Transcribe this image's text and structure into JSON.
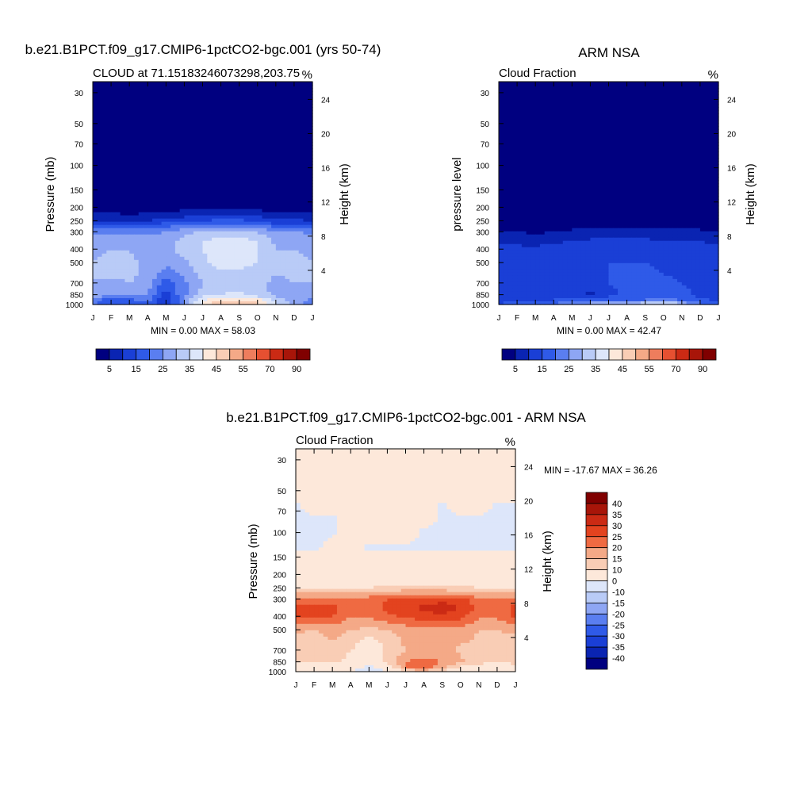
{
  "chart_data": [
    {
      "type": "heatmap",
      "title": "b.e21.B1PCT.f09_g17.CMIP6-1pctCO2-bgc.001 (yrs 50-74)",
      "subtitle": "CLOUD at 71.15183246073298,203.75",
      "units": "%",
      "ylabel": "Pressure (mb)",
      "ylabel_right": "Height (km)",
      "x_ticks": [
        "J",
        "F",
        "M",
        "A",
        "M",
        "J",
        "J",
        "A",
        "S",
        "O",
        "N",
        "D",
        "J"
      ],
      "y_ticks": [
        30,
        50,
        70,
        100,
        150,
        200,
        250,
        300,
        400,
        500,
        700,
        850,
        1000
      ],
      "y_ticks_right": [
        24,
        20,
        16,
        12,
        8,
        4
      ],
      "y_scale": "log",
      "ylim": [
        1000,
        25
      ],
      "min_max_text": "MIN =   0.00 MAX =  58.03",
      "colorbar": {
        "orientation": "horizontal",
        "labels": [
          "5",
          "15",
          "25",
          "35",
          "45",
          "55",
          "70",
          "90"
        ],
        "colors": [
          "#000080",
          "#0a24b2",
          "#1a3fd6",
          "#2f5ae8",
          "#5a7ef0",
          "#8ea6f4",
          "#b9cbf7",
          "#dde6fa",
          "#fde8da",
          "#f9cdb5",
          "#f4a987",
          "#ee7d5d",
          "#e65031",
          "#cb2a14",
          "#a81509",
          "#800000"
        ]
      },
      "field_levels": [
        {
          "pressure": 1000,
          "values": [
            22,
            14,
            14,
            19,
            8,
            26,
            43,
            51,
            52,
            48,
            37,
            27,
            22
          ]
        },
        {
          "pressure": 925,
          "values": [
            24,
            17,
            19,
            22,
            10,
            26,
            39,
            44,
            45,
            42,
            32,
            28,
            24
          ]
        },
        {
          "pressure": 850,
          "values": [
            28,
            26,
            27,
            25,
            13,
            24,
            32,
            35,
            36,
            32,
            29,
            29,
            28
          ]
        },
        {
          "pressure": 700,
          "values": [
            30,
            29,
            30,
            28,
            16,
            24,
            30,
            32,
            33,
            31,
            29,
            30,
            30
          ]
        },
        {
          "pressure": 600,
          "values": [
            30,
            31,
            31,
            29,
            22,
            26,
            32,
            34,
            34,
            32,
            30,
            31,
            30
          ]
        },
        {
          "pressure": 500,
          "values": [
            30,
            31,
            31,
            29,
            27,
            29,
            34,
            37,
            37,
            35,
            31,
            31,
            30
          ]
        },
        {
          "pressure": 400,
          "values": [
            29,
            30,
            30,
            28,
            28,
            32,
            35,
            37,
            37,
            35,
            30,
            30,
            29
          ]
        },
        {
          "pressure": 350,
          "values": [
            28,
            28,
            28,
            27,
            28,
            32,
            35,
            37,
            37,
            35,
            29,
            29,
            28
          ]
        },
        {
          "pressure": 300,
          "values": [
            24,
            24,
            23,
            24,
            25,
            28,
            31,
            32,
            32,
            30,
            25,
            25,
            24
          ]
        },
        {
          "pressure": 270,
          "values": [
            16,
            16,
            15,
            16,
            18,
            20,
            22,
            23,
            23,
            22,
            17,
            17,
            16
          ]
        },
        {
          "pressure": 250,
          "values": [
            10,
            10,
            9,
            10,
            12,
            13,
            15,
            16,
            16,
            15,
            11,
            11,
            10
          ]
        },
        {
          "pressure": 220,
          "values": [
            5,
            5,
            4,
            5,
            6,
            7,
            8,
            8,
            8,
            7,
            5,
            5,
            5
          ]
        },
        {
          "pressure": 200,
          "values": [
            2,
            2,
            2,
            2,
            2,
            3,
            3,
            3,
            3,
            3,
            2,
            2,
            2
          ]
        },
        {
          "pressure": 150,
          "values": [
            0,
            0,
            0,
            0,
            0,
            0,
            0,
            0,
            0,
            0,
            0,
            0,
            0
          ]
        },
        {
          "pressure": 25,
          "values": [
            0,
            0,
            0,
            0,
            0,
            0,
            0,
            0,
            0,
            0,
            0,
            0,
            0
          ]
        }
      ]
    },
    {
      "type": "heatmap",
      "title": "ARM NSA",
      "subtitle": "Cloud Fraction",
      "units": "%",
      "ylabel": "pressure level",
      "ylabel_right": "Height (km)",
      "x_ticks": [
        "J",
        "F",
        "M",
        "A",
        "M",
        "J",
        "J",
        "A",
        "S",
        "O",
        "N",
        "D",
        "J"
      ],
      "y_ticks": [
        30,
        50,
        70,
        100,
        150,
        200,
        250,
        300,
        400,
        500,
        700,
        850,
        1000
      ],
      "y_ticks_right": [
        24,
        20,
        16,
        12,
        8,
        4
      ],
      "y_scale": "log",
      "ylim": [
        1000,
        25
      ],
      "min_max_text": "MIN =   0.00 MAX =  42.47",
      "colorbar": {
        "orientation": "horizontal",
        "labels": [
          "5",
          "15",
          "25",
          "35",
          "45",
          "55",
          "70",
          "90"
        ],
        "colors": [
          "#000080",
          "#0a24b2",
          "#1a3fd6",
          "#2f5ae8",
          "#5a7ef0",
          "#8ea6f4",
          "#b9cbf7",
          "#dde6fa",
          "#fde8da",
          "#f9cdb5",
          "#f4a987",
          "#ee7d5d",
          "#e65031",
          "#cb2a14",
          "#a81509",
          "#800000"
        ]
      },
      "field_levels": [
        {
          "pressure": 1000,
          "values": [
            15,
            18,
            20,
            22,
            25,
            30,
            32,
            34,
            36,
            40,
            32,
            22,
            15
          ]
        },
        {
          "pressure": 925,
          "values": [
            14,
            14,
            15,
            15,
            16,
            15,
            17,
            19,
            20,
            24,
            18,
            16,
            14
          ]
        },
        {
          "pressure": 850,
          "values": [
            12,
            12,
            12,
            13,
            12,
            9,
            14,
            16,
            17,
            18,
            16,
            14,
            12
          ]
        },
        {
          "pressure": 700,
          "values": [
            12,
            12,
            13,
            13,
            13,
            12,
            15,
            16,
            16,
            16,
            15,
            14,
            12
          ]
        },
        {
          "pressure": 600,
          "values": [
            12,
            13,
            14,
            13,
            13,
            13,
            15,
            16,
            16,
            15,
            14,
            13,
            12
          ]
        },
        {
          "pressure": 500,
          "values": [
            12,
            13,
            13,
            13,
            13,
            14,
            15,
            15,
            15,
            14,
            13,
            13,
            12
          ]
        },
        {
          "pressure": 400,
          "values": [
            11,
            11,
            11,
            12,
            12,
            13,
            13,
            13,
            13,
            13,
            12,
            12,
            11
          ]
        },
        {
          "pressure": 350,
          "values": [
            9,
            9,
            8,
            9,
            10,
            11,
            11,
            11,
            11,
            10,
            10,
            10,
            9
          ]
        },
        {
          "pressure": 300,
          "values": [
            5,
            5,
            4,
            5,
            6,
            6,
            7,
            7,
            7,
            6,
            6,
            6,
            5
          ]
        },
        {
          "pressure": 270,
          "values": [
            2,
            2,
            2,
            2,
            3,
            3,
            3,
            3,
            3,
            3,
            3,
            3,
            2
          ]
        },
        {
          "pressure": 250,
          "values": [
            0,
            0,
            0,
            0,
            1,
            1,
            1,
            1,
            1,
            1,
            1,
            1,
            0
          ]
        },
        {
          "pressure": 25,
          "values": [
            0,
            0,
            0,
            0,
            0,
            0,
            0,
            0,
            0,
            0,
            0,
            0,
            0
          ]
        }
      ]
    },
    {
      "type": "heatmap",
      "title": "b.e21.B1PCT.f09_g17.CMIP6-1pctCO2-bgc.001 - ARM NSA",
      "subtitle": "Cloud Fraction",
      "units": "%",
      "ylabel": "Pressure (mb)",
      "ylabel_right": "Height (km)",
      "x_ticks": [
        "J",
        "F",
        "M",
        "A",
        "M",
        "J",
        "J",
        "A",
        "S",
        "O",
        "N",
        "D",
        "J"
      ],
      "y_ticks": [
        30,
        50,
        70,
        100,
        150,
        200,
        250,
        300,
        400,
        500,
        700,
        850,
        1000
      ],
      "y_ticks_right": [
        24,
        20,
        16,
        12,
        8,
        4
      ],
      "y_scale": "log",
      "ylim": [
        1000,
        25
      ],
      "min_max_text": "MIN = -17.67 MAX =  36.26",
      "colorbar": {
        "orientation": "vertical",
        "labels": [
          "40",
          "35",
          "30",
          "25",
          "20",
          "15",
          "10",
          "0",
          "-10",
          "-15",
          "-20",
          "-25",
          "-30",
          "-35",
          "-40"
        ],
        "colors": [
          "#800000",
          "#a81509",
          "#cb2a14",
          "#e3431f",
          "#ef6a42",
          "#f4a987",
          "#f9cdb5",
          "#fde8da",
          "#dde6fa",
          "#b9cbf7",
          "#8ea6f4",
          "#5a7ef0",
          "#2f5ae8",
          "#1a3fd6",
          "#0a24b2",
          "#000080"
        ]
      },
      "field_levels": [
        {
          "pressure": 1000,
          "values": [
            6,
            3,
            4,
            2,
            -8,
            2,
            10,
            12,
            8,
            6,
            5,
            6,
            6
          ]
        },
        {
          "pressure": 925,
          "values": [
            7,
            5,
            5,
            4,
            -2,
            6,
            20,
            24,
            16,
            10,
            7,
            7,
            7
          ]
        },
        {
          "pressure": 850,
          "values": [
            12,
            10,
            12,
            8,
            4,
            12,
            20,
            22,
            20,
            16,
            12,
            11,
            12
          ]
        },
        {
          "pressure": 700,
          "values": [
            13,
            12,
            14,
            10,
            4,
            11,
            15,
            16,
            17,
            14,
            13,
            13,
            13
          ]
        },
        {
          "pressure": 600,
          "values": [
            14,
            13,
            15,
            13,
            8,
            12,
            16,
            17,
            17,
            16,
            14,
            14,
            14
          ]
        },
        {
          "pressure": 500,
          "values": [
            16,
            15,
            17,
            15,
            14,
            15,
            17,
            19,
            19,
            18,
            15,
            15,
            16
          ]
        },
        {
          "pressure": 400,
          "values": [
            26,
            26,
            25,
            20,
            20,
            24,
            26,
            28,
            29,
            27,
            21,
            21,
            26
          ]
        },
        {
          "pressure": 350,
          "values": [
            27,
            28,
            27,
            22,
            23,
            26,
            29,
            31,
            33,
            30,
            23,
            22,
            27
          ]
        },
        {
          "pressure": 300,
          "values": [
            22,
            22,
            21,
            20,
            22,
            25,
            27,
            28,
            28,
            27,
            21,
            20,
            22
          ]
        },
        {
          "pressure": 270,
          "values": [
            15,
            15,
            14,
            14,
            15,
            17,
            18,
            18,
            18,
            17,
            14,
            14,
            15
          ]
        },
        {
          "pressure": 250,
          "values": [
            10,
            10,
            9,
            9,
            10,
            11,
            12,
            12,
            12,
            11,
            10,
            10,
            10
          ]
        },
        {
          "pressure": 220,
          "values": [
            6,
            6,
            5,
            5,
            6,
            6,
            6,
            6,
            6,
            6,
            6,
            6,
            6
          ]
        },
        {
          "pressure": 150,
          "values": [
            3,
            3,
            3,
            3,
            3,
            3,
            3,
            3,
            3,
            3,
            3,
            3,
            3
          ]
        },
        {
          "pressure": 130,
          "values": [
            -1,
            -1,
            2,
            2,
            -1,
            -1,
            -1,
            -1,
            -1,
            -1,
            -1,
            -1,
            -1
          ]
        },
        {
          "pressure": 100,
          "values": [
            -1,
            -1,
            -1,
            2,
            3,
            3,
            3,
            -1,
            -1,
            -1,
            -1,
            -1,
            -1
          ]
        },
        {
          "pressure": 80,
          "values": [
            -1,
            -1,
            -1,
            2,
            3,
            3,
            3,
            2,
            -1,
            -1,
            -1,
            -1,
            -1
          ]
        },
        {
          "pressure": 65,
          "values": [
            -1,
            3,
            3,
            3,
            3,
            3,
            3,
            3,
            -1,
            3,
            3,
            -1,
            -1
          ]
        },
        {
          "pressure": 50,
          "values": [
            3,
            3,
            3,
            3,
            3,
            3,
            3,
            3,
            3,
            3,
            3,
            3,
            3
          ]
        },
        {
          "pressure": 25,
          "values": [
            3,
            3,
            3,
            3,
            3,
            3,
            3,
            3,
            3,
            3,
            3,
            3,
            3
          ]
        }
      ]
    }
  ]
}
